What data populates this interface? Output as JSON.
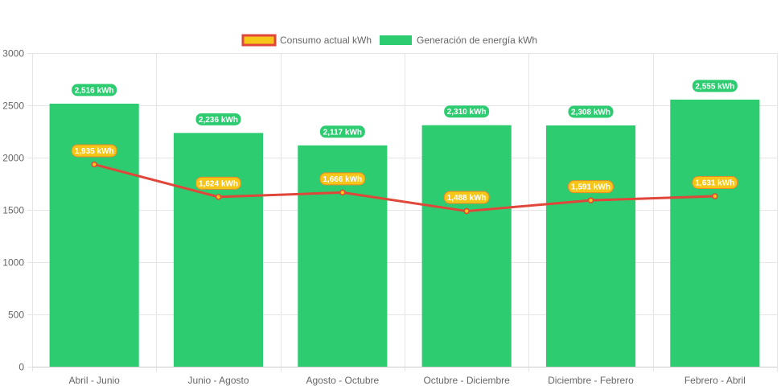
{
  "chart_data": {
    "type": "bar",
    "categories": [
      "Abril - Junio",
      "Junio - Agosto",
      "Agosto - Octubre",
      "Octubre - Diciembre",
      "Diciembre - Febrero",
      "Febrero - Abril"
    ],
    "series": [
      {
        "name": "Consumo actual kWh",
        "type": "line",
        "values": [
          1935,
          1624,
          1666,
          1488,
          1591,
          1631
        ],
        "labels": [
          "1,935 kWh",
          "1,624 kWh",
          "1,666 kWh",
          "1,488 kWh",
          "1,591 kWh",
          "1,631 kWh"
        ],
        "color": "#e0463a",
        "fill": "#f5c518"
      },
      {
        "name": "Generación de energía kWh",
        "type": "bar",
        "values": [
          2516,
          2236,
          2117,
          2310,
          2308,
          2555
        ],
        "labels": [
          "2,516 kWh",
          "2,236 kWh",
          "2,117 kWh",
          "2,310 kWh",
          "2,308 kWh",
          "2,555 kWh"
        ],
        "color": "#2ecc71"
      }
    ],
    "ylim": [
      0,
      3000
    ],
    "yticks": [
      "0",
      "500",
      "1000",
      "1500",
      "2000",
      "2500",
      "3000"
    ],
    "ytick_values": [
      0,
      500,
      1000,
      1500,
      2000,
      2500,
      3000
    ],
    "grid": true,
    "legend_position": "top-center",
    "xlabel": "",
    "ylabel": "",
    "title": ""
  }
}
